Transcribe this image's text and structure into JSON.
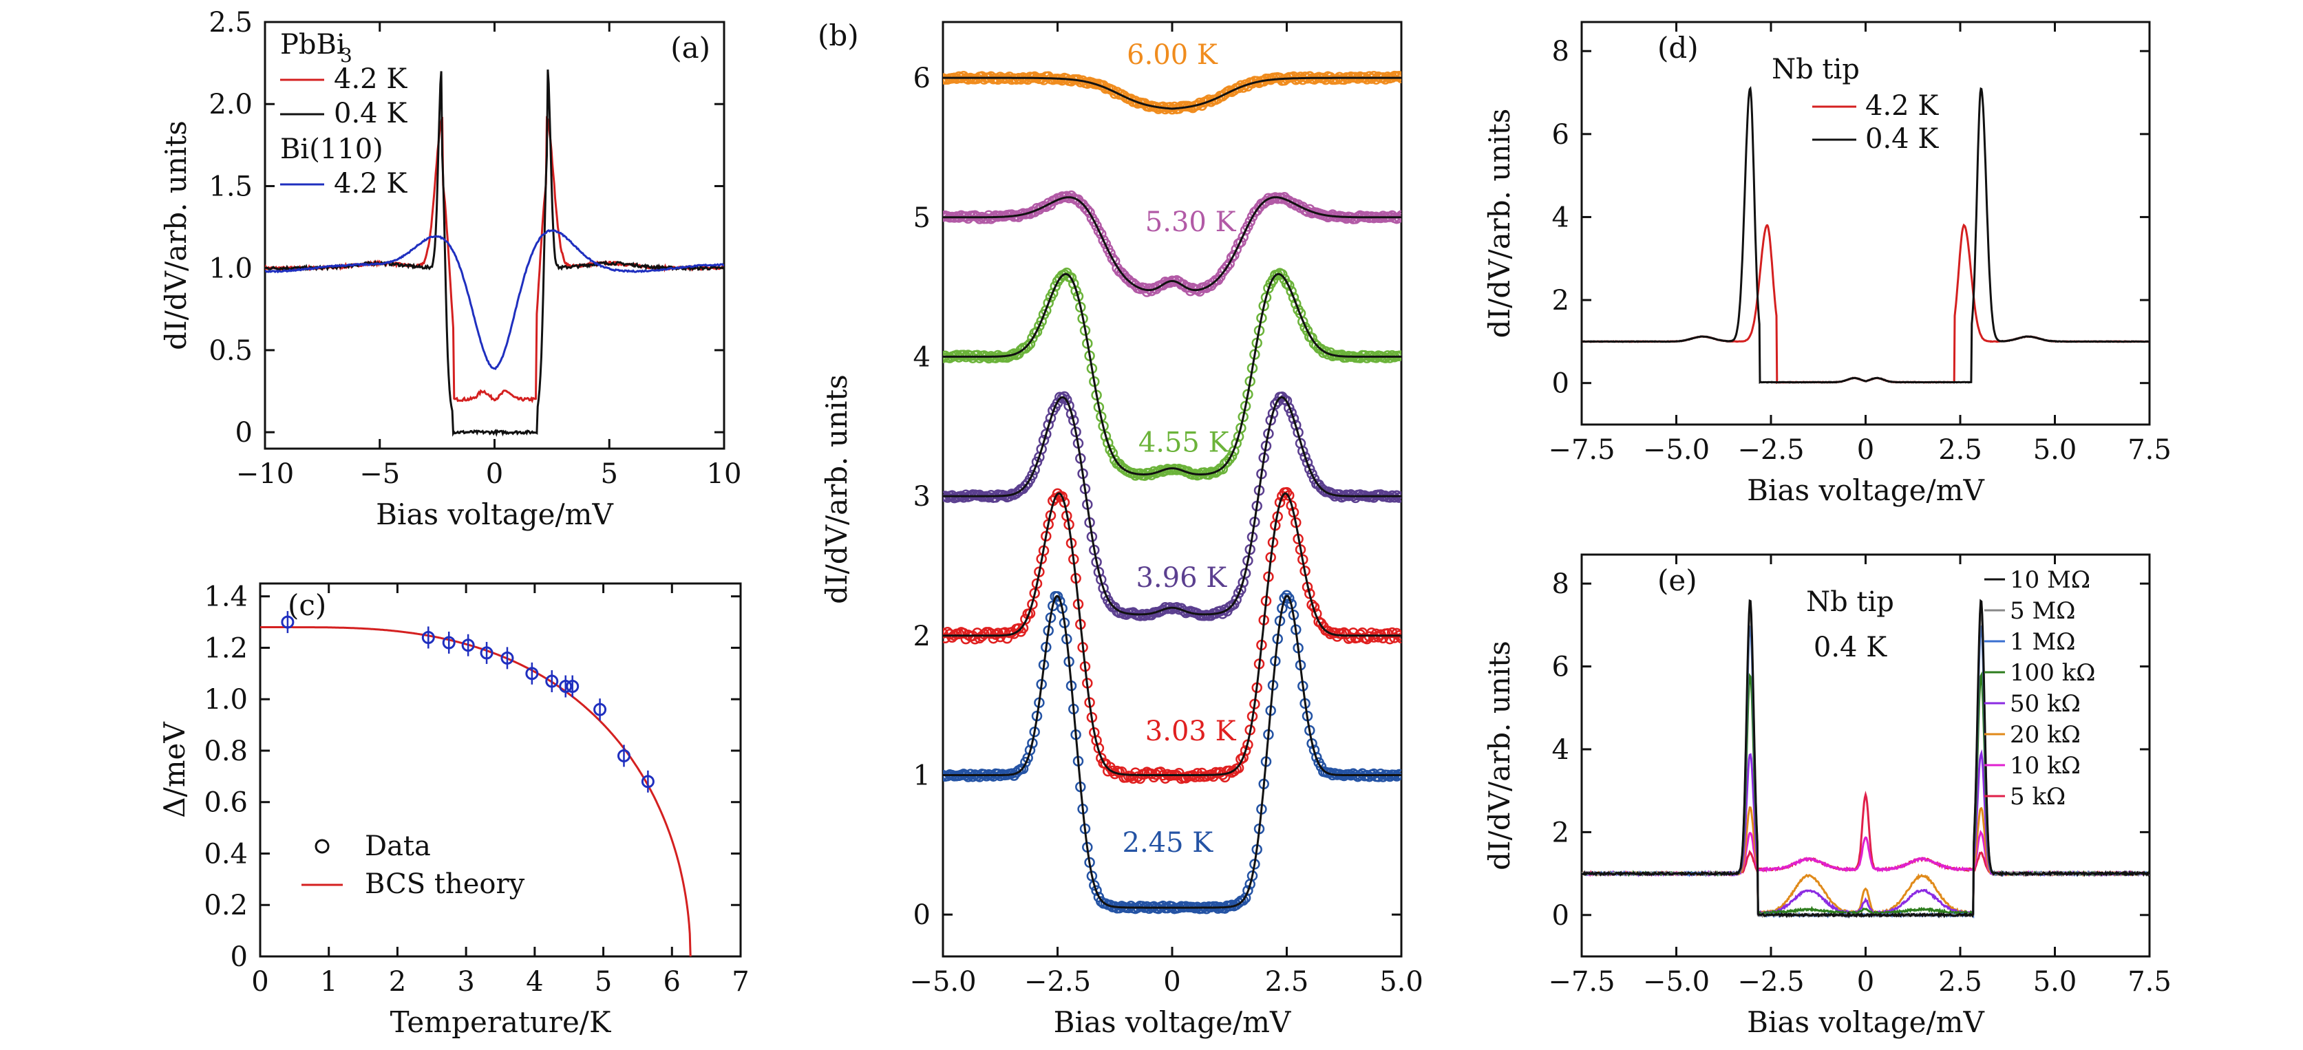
{
  "chart_data": [
    {
      "panel": "(a)",
      "type": "line",
      "xlabel": "Bias voltage/mV",
      "ylabel": "dI/dV/arb. units",
      "xlim": [
        -10,
        10
      ],
      "ylim": [
        -0.1,
        2.5
      ],
      "xticks": [
        -10,
        -5,
        0,
        5,
        10
      ],
      "yticks": [
        0,
        0.5,
        1.0,
        1.5,
        2.0,
        2.5
      ],
      "legend_groups": [
        "PbBi3",
        "Bi(110)"
      ],
      "series": [
        {
          "name": "4.2 K",
          "group": "PbBi3",
          "color": "#d42020",
          "model": "dynes",
          "gap": 2.25,
          "width": 0.45,
          "floor": 0.2,
          "base": 1.0
        },
        {
          "name": "0.4 K",
          "group": "PbBi3",
          "color": "#111111",
          "model": "dynes",
          "gap": 2.3,
          "width": 0.2,
          "floor": 0.0,
          "base": 1.0
        },
        {
          "name": "4.2 K",
          "group": "Bi(110)",
          "color": "#1f2fbf",
          "model": "broad",
          "gap": 2.4,
          "width": 1.3,
          "floor": 0.37,
          "base": 1.0
        }
      ]
    },
    {
      "panel": "(b)",
      "type": "line",
      "xlabel": "Bias voltage/mV",
      "ylabel": "dI/dV/arb. units",
      "xlim": [
        -5,
        5
      ],
      "ylim": [
        -0.3,
        6.4
      ],
      "xticks": [
        -5.0,
        -2.5,
        0,
        2.5,
        5.0
      ],
      "yticks": [
        0,
        1.0,
        2.0,
        3.0,
        4.0,
        5.0,
        6.0
      ],
      "series": [
        {
          "name": "2.45 K",
          "color": "#2453a4",
          "offset": 0.0,
          "gap": 2.5,
          "width": 0.3,
          "floor": 0.05,
          "peak": 2.3
        },
        {
          "name": "3.03 K",
          "color": "#e02020",
          "offset": 1.0,
          "gap": 2.45,
          "width": 0.35,
          "floor": 0.0,
          "peak": 2.05
        },
        {
          "name": "3.96 K",
          "color": "#5b3f8f",
          "offset": 2.0,
          "gap": 2.35,
          "width": 0.4,
          "floor": 0.15,
          "peak": 1.75
        },
        {
          "name": "4.55 K",
          "color": "#6bb33a",
          "offset": 3.0,
          "gap": 2.25,
          "width": 0.45,
          "floor": 0.15,
          "peak": 1.65
        },
        {
          "name": "5.30 K",
          "color": "#b25aa6",
          "offset": 4.0,
          "gap": 2.0,
          "width": 0.6,
          "floor": 0.45,
          "peak": 1.2
        },
        {
          "name": "6.00 K",
          "color": "#f08c1e",
          "offset": 5.0,
          "gap": 1.5,
          "width": 0.8,
          "floor": 0.77,
          "peak": 1.0
        }
      ]
    },
    {
      "panel": "(c)",
      "type": "scatter",
      "xlabel": "Temperature/K",
      "ylabel": "Δ/meV",
      "xlim": [
        0,
        7
      ],
      "ylim": [
        0,
        1.45
      ],
      "xticks": [
        0,
        1,
        2,
        3,
        4,
        5,
        6,
        7
      ],
      "yticks": [
        0,
        0.2,
        0.4,
        0.6,
        0.8,
        1.0,
        1.2,
        1.4
      ],
      "points": [
        {
          "x": 0.4,
          "y": 1.3
        },
        {
          "x": 2.45,
          "y": 1.24
        },
        {
          "x": 2.75,
          "y": 1.22
        },
        {
          "x": 3.03,
          "y": 1.21
        },
        {
          "x": 3.3,
          "y": 1.18
        },
        {
          "x": 3.6,
          "y": 1.16
        },
        {
          "x": 3.96,
          "y": 1.1
        },
        {
          "x": 4.25,
          "y": 1.07
        },
        {
          "x": 4.45,
          "y": 1.05
        },
        {
          "x": 4.55,
          "y": 1.05
        },
        {
          "x": 4.95,
          "y": 0.96
        },
        {
          "x": 5.3,
          "y": 0.78
        },
        {
          "x": 5.65,
          "y": 0.68
        }
      ],
      "fit": {
        "name": "BCS theory",
        "color": "#d42020",
        "delta0": 1.28,
        "tc": 6.27
      },
      "data_label": "Data",
      "point_color": "#1f2fbf"
    },
    {
      "panel": "(d)",
      "type": "line",
      "xlabel": "Bias voltage/mV",
      "ylabel": "dI/dV/arb. units",
      "xlim": [
        -7.5,
        7.5
      ],
      "ylim": [
        -1.0,
        8.7
      ],
      "xticks": [
        -7.5,
        -5.0,
        -2.5,
        0,
        2.5,
        5.0,
        7.5
      ],
      "yticks": [
        0,
        2,
        4,
        6,
        8
      ],
      "legend_title": "Nb tip",
      "series": [
        {
          "name": "4.2 K",
          "color": "#d42020",
          "gap": 2.6,
          "width": 0.2,
          "floor": 0.0,
          "peak": 3.8
        },
        {
          "name": "0.4 K",
          "color": "#111111",
          "gap": 3.05,
          "width": 0.15,
          "floor": 0.0,
          "peak": 7.1
        }
      ]
    },
    {
      "panel": "(e)",
      "type": "line",
      "xlabel": "Bias voltage/mV",
      "ylabel": "dI/dV/arb. units",
      "xlim": [
        -7.5,
        7.5
      ],
      "ylim": [
        -1.0,
        8.7
      ],
      "xticks": [
        -7.5,
        -5.0,
        -2.5,
        0,
        2.5,
        5.0,
        7.5
      ],
      "yticks": [
        0,
        2,
        4,
        6,
        8
      ],
      "annotation": [
        "Nb tip",
        "0.4 K"
      ],
      "series": [
        {
          "name": "10 MΩ",
          "color": "#111111",
          "peak": 7.6,
          "sub": 0.0,
          "zb": 0.0
        },
        {
          "name": "5 MΩ",
          "color": "#888888",
          "peak": 7.4,
          "sub": 0.0,
          "zb": 0.0
        },
        {
          "name": "1 MΩ",
          "color": "#3a6fd0",
          "peak": 7.0,
          "sub": 0.0,
          "zb": 0.0
        },
        {
          "name": "100 kΩ",
          "color": "#2e7d1e",
          "peak": 5.8,
          "sub": 0.1,
          "zb": 0.1
        },
        {
          "name": "50 kΩ",
          "color": "#8b2be2",
          "peak": 3.9,
          "sub": 0.6,
          "zb": 0.3
        },
        {
          "name": "20 kΩ",
          "color": "#e08a1a",
          "peak": 2.6,
          "sub": 1.0,
          "zb": 0.6
        },
        {
          "name": "10 kΩ",
          "color": "#e020d0",
          "peak": 2.0,
          "sub": 1.4,
          "zb": 1.3
        },
        {
          "name": "5 kΩ",
          "color": "#e0204a",
          "peak": 1.5,
          "sub": 1.5,
          "zb": 3.0
        }
      ]
    }
  ]
}
